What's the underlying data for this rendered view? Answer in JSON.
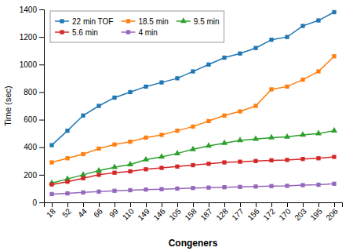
{
  "chart_data": {
    "type": "line",
    "xlabel": "Congeners",
    "ylabel": "Time (sec)",
    "categories": [
      "18",
      "52",
      "44",
      "66",
      "99",
      "110",
      "149",
      "146",
      "105",
      "158",
      "187",
      "128",
      "177",
      "156",
      "172",
      "170",
      "203",
      "195",
      "206"
    ],
    "series": [
      {
        "name": "22 min TOF",
        "marker": "square",
        "values": [
          415,
          520,
          630,
          700,
          760,
          800,
          840,
          870,
          900,
          950,
          1000,
          1050,
          1080,
          1120,
          1180,
          1200,
          1280,
          1320,
          1380
        ]
      },
      {
        "name": "18.5 min",
        "marker": "square",
        "values": [
          290,
          320,
          350,
          390,
          420,
          440,
          470,
          490,
          520,
          550,
          590,
          630,
          660,
          700,
          820,
          840,
          890,
          950,
          1060
        ]
      },
      {
        "name": "9.5 min",
        "marker": "triangle",
        "values": [
          140,
          170,
          200,
          230,
          255,
          275,
          310,
          330,
          355,
          385,
          410,
          430,
          450,
          460,
          470,
          475,
          490,
          500,
          520
        ]
      },
      {
        "name": "5.6 min",
        "marker": "square",
        "values": [
          130,
          150,
          175,
          200,
          215,
          225,
          240,
          250,
          260,
          270,
          280,
          290,
          295,
          300,
          305,
          308,
          315,
          320,
          330
        ]
      },
      {
        "name": "4 min",
        "marker": "square",
        "values": [
          60,
          65,
          72,
          78,
          84,
          88,
          93,
          96,
          100,
          104,
          107,
          110,
          112,
          115,
          118,
          120,
          125,
          128,
          135
        ]
      }
    ],
    "ylim": [
      0,
      1400
    ],
    "yticks": [
      0,
      200,
      400,
      600,
      800,
      1000,
      1200,
      1400
    ],
    "grid": false,
    "legend": "upper left"
  }
}
